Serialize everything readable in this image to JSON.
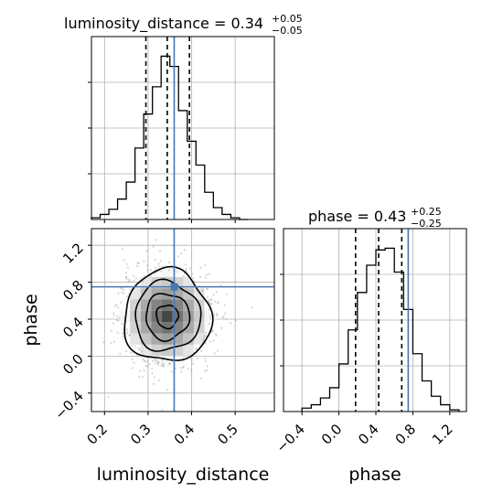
{
  "chart_data": [
    {
      "type": "histogram",
      "panel": "luminosity_distance-marginal",
      "title_param": "luminosity_distance",
      "title_value": "0.34",
      "title_plus": "+0.05",
      "title_minus": "−0.05",
      "xlim": [
        0.17,
        0.59
      ],
      "bin_edges": [
        0.17,
        0.19,
        0.21,
        0.23,
        0.25,
        0.27,
        0.29,
        0.31,
        0.33,
        0.35,
        0.37,
        0.39,
        0.41,
        0.43,
        0.45,
        0.47,
        0.49,
        0.51,
        0.53
      ],
      "counts": [
        1,
        3,
        6,
        12,
        22,
        42,
        62,
        78,
        96,
        90,
        64,
        46,
        32,
        16,
        7,
        3,
        1,
        0
      ],
      "quantiles": [
        0.295,
        0.344,
        0.395
      ],
      "truth": 0.36,
      "grid": true
    },
    {
      "type": "scatter-contour",
      "panel": "phase-vs-luminosity_distance",
      "xlabel": "luminosity_distance",
      "ylabel": "phase",
      "xlim": [
        0.17,
        0.59
      ],
      "ylim": [
        -0.6,
        1.38
      ],
      "xticks": [
        "0.2",
        "0.3",
        "0.4",
        "0.5"
      ],
      "xtick_values": [
        0.2,
        0.3,
        0.4,
        0.5
      ],
      "yticks": [
        "−0.4",
        "0.0",
        "0.4",
        "0.8",
        "1.2"
      ],
      "ytick_values": [
        -0.4,
        0.0,
        0.4,
        0.8,
        1.2
      ],
      "center": [
        0.344,
        0.43
      ],
      "spread": [
        0.05,
        0.25
      ],
      "contour_scales": [
        0.5,
        1.0,
        1.5,
        2.0
      ],
      "truth": [
        0.36,
        0.75
      ],
      "grid": true
    },
    {
      "type": "histogram",
      "panel": "phase-marginal",
      "title_param": "phase",
      "title_value": "0.43",
      "title_plus": "+0.25",
      "title_minus": "−0.25",
      "xlabel": "phase",
      "xlim": [
        -0.6,
        1.38
      ],
      "xticks": [
        "−0.4",
        "0.0",
        "0.4",
        "0.8",
        "1.2"
      ],
      "xtick_values": [
        -0.4,
        0.0,
        0.4,
        0.8,
        1.2
      ],
      "bin_edges": [
        -0.4,
        -0.3,
        -0.2,
        -0.1,
        0.0,
        0.1,
        0.2,
        0.3,
        0.4,
        0.5,
        0.6,
        0.7,
        0.8,
        0.9,
        1.0,
        1.1,
        1.2,
        1.3
      ],
      "counts": [
        2,
        4,
        8,
        14,
        28,
        48,
        70,
        86,
        95,
        96,
        82,
        60,
        34,
        18,
        9,
        4,
        1
      ],
      "quantiles": [
        0.18,
        0.43,
        0.68
      ],
      "truth": 0.75,
      "grid": true
    }
  ],
  "colors": {
    "truth": "#4878b0",
    "line": "#000000",
    "grid": "#b0b0b0",
    "points": "#8a8a8a"
  }
}
